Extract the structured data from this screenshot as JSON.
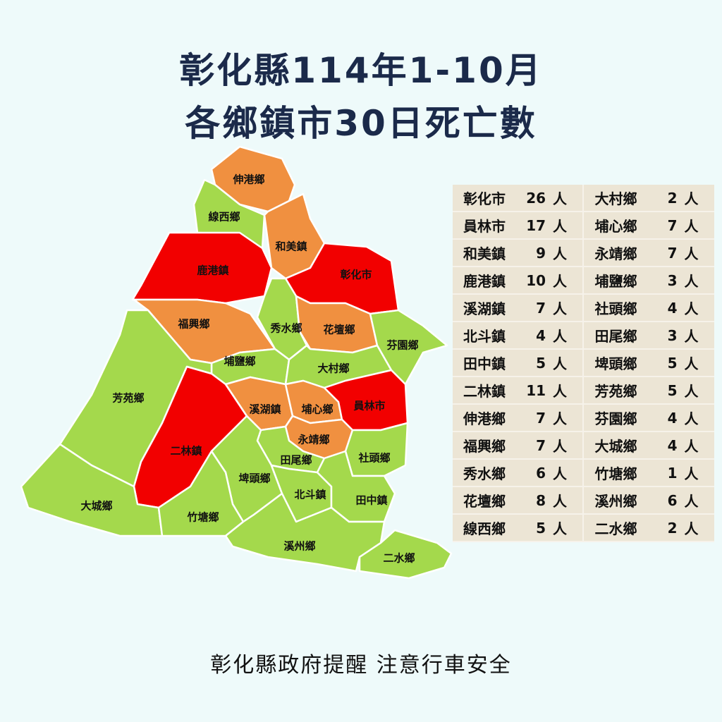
{
  "title": {
    "line1": "彰化縣114年1-10月",
    "line2": "各鄉鎮市30日死亡數"
  },
  "colors": {
    "high": "#f20000",
    "medium": "#f09040",
    "low": "#a4d94c",
    "background": "#eefafa",
    "title": "#1b2a4a",
    "table_bg": "#ece5d5"
  },
  "unit": "人",
  "table": {
    "left": [
      {
        "name": "彰化市",
        "value": 26
      },
      {
        "name": "員林市",
        "value": 17
      },
      {
        "name": "和美鎮",
        "value": 9
      },
      {
        "name": "鹿港鎮",
        "value": 10
      },
      {
        "name": "溪湖鎮",
        "value": 7
      },
      {
        "name": "北斗鎮",
        "value": 4
      },
      {
        "name": "田中鎮",
        "value": 5
      },
      {
        "name": "二林鎮",
        "value": 11
      },
      {
        "name": "伸港鄉",
        "value": 7
      },
      {
        "name": "福興鄉",
        "value": 7
      },
      {
        "name": "秀水鄉",
        "value": 6
      },
      {
        "name": "花壇鄉",
        "value": 8
      },
      {
        "name": "線西鄉",
        "value": 5
      }
    ],
    "right": [
      {
        "name": "大村鄉",
        "value": 2
      },
      {
        "name": "埔心鄉",
        "value": 7
      },
      {
        "name": "永靖鄉",
        "value": 7
      },
      {
        "name": "埔鹽鄉",
        "value": 3
      },
      {
        "name": "社頭鄉",
        "value": 4
      },
      {
        "name": "田尾鄉",
        "value": 3
      },
      {
        "name": "埤頭鄉",
        "value": 5
      },
      {
        "name": "芳苑鄉",
        "value": 5
      },
      {
        "name": "芬園鄉",
        "value": 4
      },
      {
        "name": "大城鄉",
        "value": 4
      },
      {
        "name": "竹塘鄉",
        "value": 1
      },
      {
        "name": "溪州鄉",
        "value": 6
      },
      {
        "name": "二水鄉",
        "value": 2
      }
    ]
  },
  "footer": "彰化縣政府提醒 注意行車安全"
}
